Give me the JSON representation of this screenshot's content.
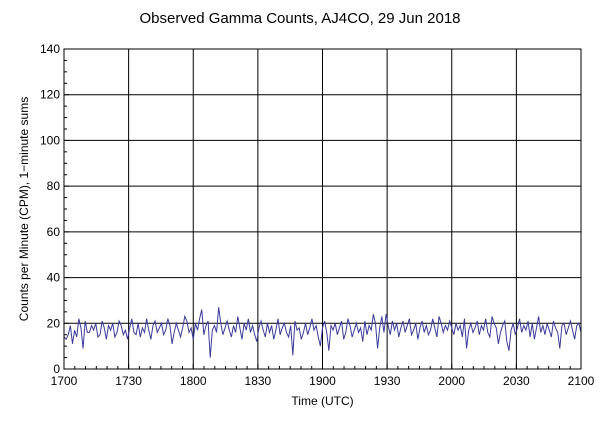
{
  "chart_data": {
    "type": "line",
    "title": "Observed Gamma Counts, AJ4CO, 29 Jun 2018",
    "xlabel": "Time (UTC)",
    "ylabel": "Counts per Minute (CPM), 1−minute sums",
    "xlim": [
      0,
      240
    ],
    "ylim": [
      0,
      140
    ],
    "x_ticks": [
      {
        "value": 0,
        "label": "1700"
      },
      {
        "value": 30,
        "label": "1730"
      },
      {
        "value": 60,
        "label": "1800"
      },
      {
        "value": 90,
        "label": "1830"
      },
      {
        "value": 120,
        "label": "1900"
      },
      {
        "value": 150,
        "label": "1930"
      },
      {
        "value": 180,
        "label": "2000"
      },
      {
        "value": 210,
        "label": "2030"
      },
      {
        "value": 240,
        "label": "2100"
      }
    ],
    "y_ticks": [
      0,
      20,
      40,
      60,
      80,
      100,
      120,
      140
    ],
    "grid": true,
    "line_color": "#3b3b9b",
    "series": [
      {
        "name": "",
        "values": [
          14,
          13,
          15,
          19,
          11,
          17,
          14,
          22,
          18,
          9,
          21,
          16,
          16,
          19,
          17,
          20,
          14,
          15,
          21,
          18,
          13,
          19,
          17,
          20,
          14,
          16,
          21,
          19,
          15,
          17,
          13,
          18,
          22,
          16,
          15,
          20,
          14,
          18,
          16,
          22,
          17,
          13,
          19,
          21,
          16,
          18,
          20,
          15,
          17,
          22,
          19,
          11,
          16,
          20,
          17,
          14,
          18,
          23,
          21,
          16,
          18,
          13,
          20,
          17,
          22,
          26,
          15,
          19,
          21,
          5,
          17,
          19,
          16,
          27,
          20,
          15,
          18,
          21,
          17,
          14,
          19,
          16,
          23,
          18,
          13,
          20,
          17,
          22,
          16,
          19,
          15,
          12,
          18,
          21,
          17,
          14,
          20,
          16,
          19,
          13,
          17,
          22,
          15,
          18,
          20,
          16,
          14,
          19,
          6,
          21,
          17,
          18,
          13,
          16,
          20,
          15,
          18,
          22,
          17,
          19,
          14,
          10,
          18,
          21,
          16,
          8,
          19,
          17,
          20,
          15,
          18,
          21,
          13,
          16,
          22,
          19,
          14,
          17,
          20,
          16,
          18,
          12,
          21,
          15,
          19,
          17,
          24,
          20,
          9,
          18,
          23,
          16,
          24,
          19,
          15,
          21,
          17,
          20,
          14,
          18,
          21,
          16,
          19,
          22,
          15,
          17,
          20,
          13,
          18,
          21,
          16,
          19,
          15,
          17,
          22,
          18,
          14,
          23,
          20,
          16,
          19,
          17,
          21,
          18,
          15,
          20,
          17,
          19,
          14,
          22,
          9,
          17,
          20,
          16,
          18,
          21,
          15,
          19,
          17,
          22,
          16,
          14,
          23,
          20,
          18,
          11,
          16,
          19,
          21,
          12,
          8,
          17,
          20,
          15,
          18,
          22,
          16,
          19,
          17,
          21,
          14,
          20,
          13,
          18,
          23,
          16,
          19,
          15,
          20,
          17,
          14,
          21,
          18,
          16,
          9,
          19,
          20,
          15,
          18,
          21,
          17,
          13,
          19,
          20,
          16
        ]
      }
    ]
  }
}
